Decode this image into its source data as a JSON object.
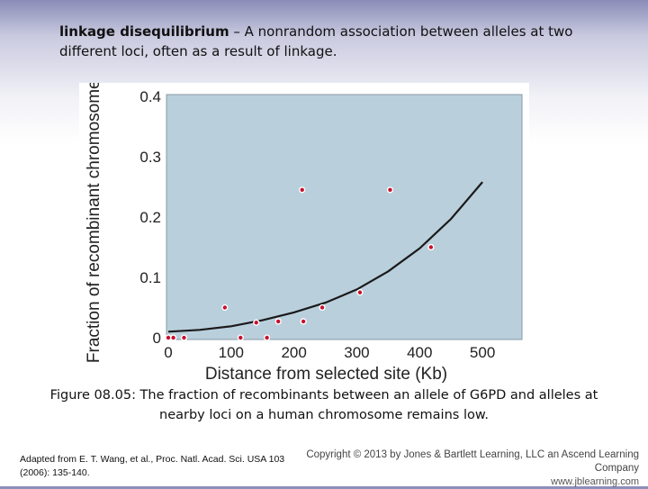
{
  "definition": {
    "term": "linkage disequilibrium",
    "text": " – A nonrandom association between alleles at two different loci, often as a result of linkage."
  },
  "caption": "Figure 08.05: The fraction of recombinants between an allele of G6PD and alleles at nearby loci on a human chromosome remains low.",
  "source": "Adapted from E. T. Wang, et al., Proc. Natl. Acad. Sci. USA 103 (2006): 135-140.",
  "copyright": {
    "line1": "Copyright © 2013 by Jones & Bartlett Learning, LLC an Ascend Learning Company",
    "line2": "www.jblearning.com"
  },
  "colors": {
    "plot_background": "#b9cfdc",
    "curve": "#1a1a1a",
    "points": "#c8102e",
    "axis_text": "#222222"
  },
  "chart_data": {
    "type": "scatter",
    "title": "",
    "xlabel": "Distance from selected site (Kb)",
    "ylabel": "Fraction of recombinant chromosomes",
    "xlim": [
      0,
      560
    ],
    "ylim": [
      0,
      0.4
    ],
    "xticks": [
      0,
      100,
      200,
      300,
      400,
      500
    ],
    "xtick_labels": [
      "0",
      "100",
      "200",
      "300",
      "400",
      "500"
    ],
    "yticks": [
      0,
      0.1,
      0.2,
      0.3,
      0.4
    ],
    "ytick_labels": [
      "0",
      "0.1",
      "0.2",
      "0.3",
      "0.4"
    ],
    "grid": false,
    "points": [
      {
        "x": 0,
        "y": 0
      },
      {
        "x": 8,
        "y": 0
      },
      {
        "x": 25,
        "y": 0
      },
      {
        "x": 90,
        "y": 0.05
      },
      {
        "x": 115,
        "y": 0
      },
      {
        "x": 140,
        "y": 0.025
      },
      {
        "x": 157,
        "y": 0
      },
      {
        "x": 175,
        "y": 0.027
      },
      {
        "x": 213,
        "y": 0.245
      },
      {
        "x": 215,
        "y": 0.027
      },
      {
        "x": 245,
        "y": 0.05
      },
      {
        "x": 305,
        "y": 0.075
      },
      {
        "x": 353,
        "y": 0.245
      },
      {
        "x": 418,
        "y": 0.15
      }
    ],
    "trend_curve": {
      "x": [
        0,
        50,
        100,
        150,
        200,
        250,
        300,
        350,
        400,
        450,
        500
      ],
      "y": [
        0.01,
        0.013,
        0.019,
        0.029,
        0.042,
        0.058,
        0.08,
        0.11,
        0.148,
        0.197,
        0.258
      ]
    }
  }
}
